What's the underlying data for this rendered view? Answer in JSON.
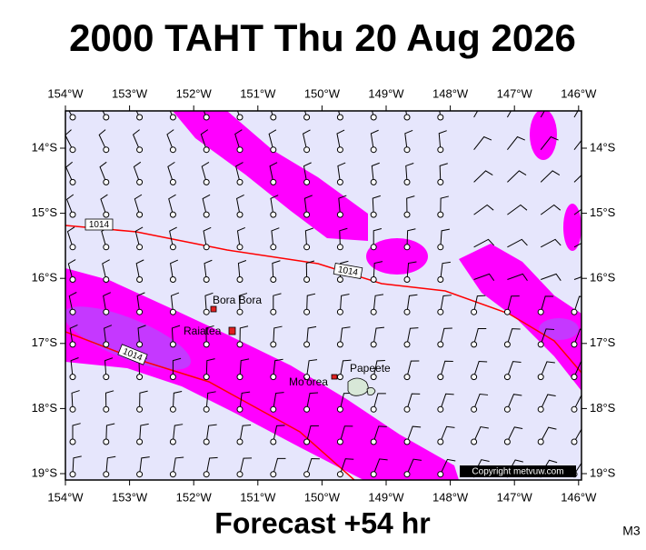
{
  "header": {
    "title": "2000 TAHT Thu 20 Aug 2026"
  },
  "map": {
    "lon_labels_top": [
      "154°W",
      "153°W",
      "152°W",
      "151°W",
      "150°W",
      "149°W",
      "148°W",
      "147°W",
      "146°W"
    ],
    "lon_labels_bottom": [
      "154°W",
      "153°W",
      "152°W",
      "151°W",
      "150°W",
      "149°W",
      "148°W",
      "147°W",
      "146°W"
    ],
    "lat_labels_left": [
      "14°S",
      "15°S",
      "16°S",
      "17°S",
      "18°S",
      "19°S"
    ],
    "lat_labels_right": [
      "14°S",
      "15°S",
      "16°S",
      "17°S",
      "18°S",
      "19°S"
    ],
    "places": [
      "Bora Bora",
      "Raiatea",
      "Mo'orea",
      "Papeete"
    ],
    "isobar_labels": [
      "1014",
      "1014",
      "1014"
    ],
    "copyright": "Copyright metvuw.com"
  },
  "footer": {
    "forecast": "Forecast +54 hr",
    "code": "M3"
  }
}
